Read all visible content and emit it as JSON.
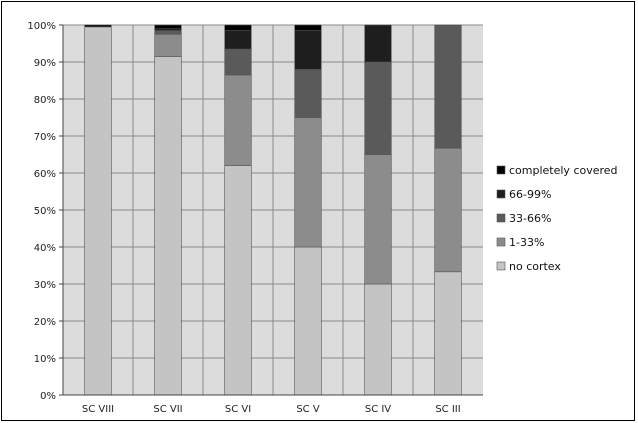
{
  "chart_data": {
    "type": "bar",
    "stacked": true,
    "categories": [
      "SC VIII",
      "SC VII",
      "SC VI",
      "SC V",
      "SC IV",
      "SC III"
    ],
    "series": [
      {
        "name": "no cortex",
        "color": "#c4c4c4",
        "values": [
          99.5,
          91.5,
          62,
          40,
          30,
          33.3
        ]
      },
      {
        "name": "1-33%",
        "color": "#8c8c8c",
        "values": [
          0,
          6,
          24.5,
          35,
          35,
          33.4
        ]
      },
      {
        "name": "33-66%",
        "color": "#5a5a5a",
        "values": [
          0,
          1,
          7,
          13,
          25,
          33.3
        ]
      },
      {
        "name": "66-99%",
        "color": "#1e1e1e",
        "values": [
          0,
          0.5,
          5,
          10.5,
          10,
          0
        ]
      },
      {
        "name": "completely covered",
        "color": "#000000",
        "values": [
          0.5,
          1,
          1.5,
          1.5,
          0,
          0
        ]
      }
    ],
    "y_tick_labels": [
      "0%",
      "10%",
      "20%",
      "30%",
      "40%",
      "50%",
      "60%",
      "70%",
      "80%",
      "90%",
      "100%"
    ],
    "ylim": [
      0,
      100
    ],
    "grid": true,
    "legend_position": "right",
    "legend_order": [
      "completely covered",
      "66-99%",
      "33-66%",
      "1-33%",
      "no cortex"
    ],
    "plot_background": "#dcdcdc"
  }
}
